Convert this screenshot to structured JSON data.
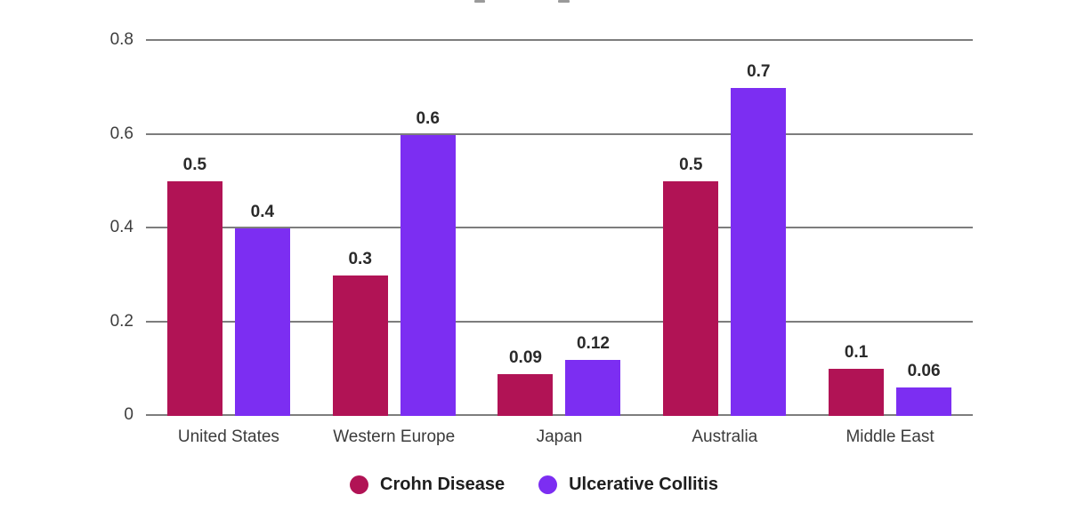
{
  "chart_data": {
    "type": "bar",
    "categories": [
      "United States",
      "Western Europe",
      "Japan",
      "Australia",
      "Middle East"
    ],
    "series": [
      {
        "name": "Crohn Disease",
        "color": "#b11355",
        "values": [
          0.5,
          0.3,
          0.09,
          0.5,
          0.1
        ]
      },
      {
        "name": "Ulcerative Collitis",
        "color": "#7c2ef2",
        "values": [
          0.4,
          0.6,
          0.12,
          0.7,
          0.06
        ]
      }
    ],
    "value_labels": [
      "0.5",
      "0.3",
      "0.09",
      "0.5",
      "0.1",
      "0.4",
      "0.6",
      "0.12",
      "0.7",
      "0.06"
    ],
    "ylim": [
      0,
      0.8
    ],
    "yticks": [
      "0",
      "0.2",
      "0.4",
      "0.6",
      "0.8"
    ],
    "grid": true,
    "legend_position": "bottom"
  },
  "legend": {
    "items": [
      {
        "label": "Crohn Disease",
        "color": "#b11355"
      },
      {
        "label": "Ulcerative Collitis",
        "color": "#7c2ef2"
      }
    ]
  }
}
